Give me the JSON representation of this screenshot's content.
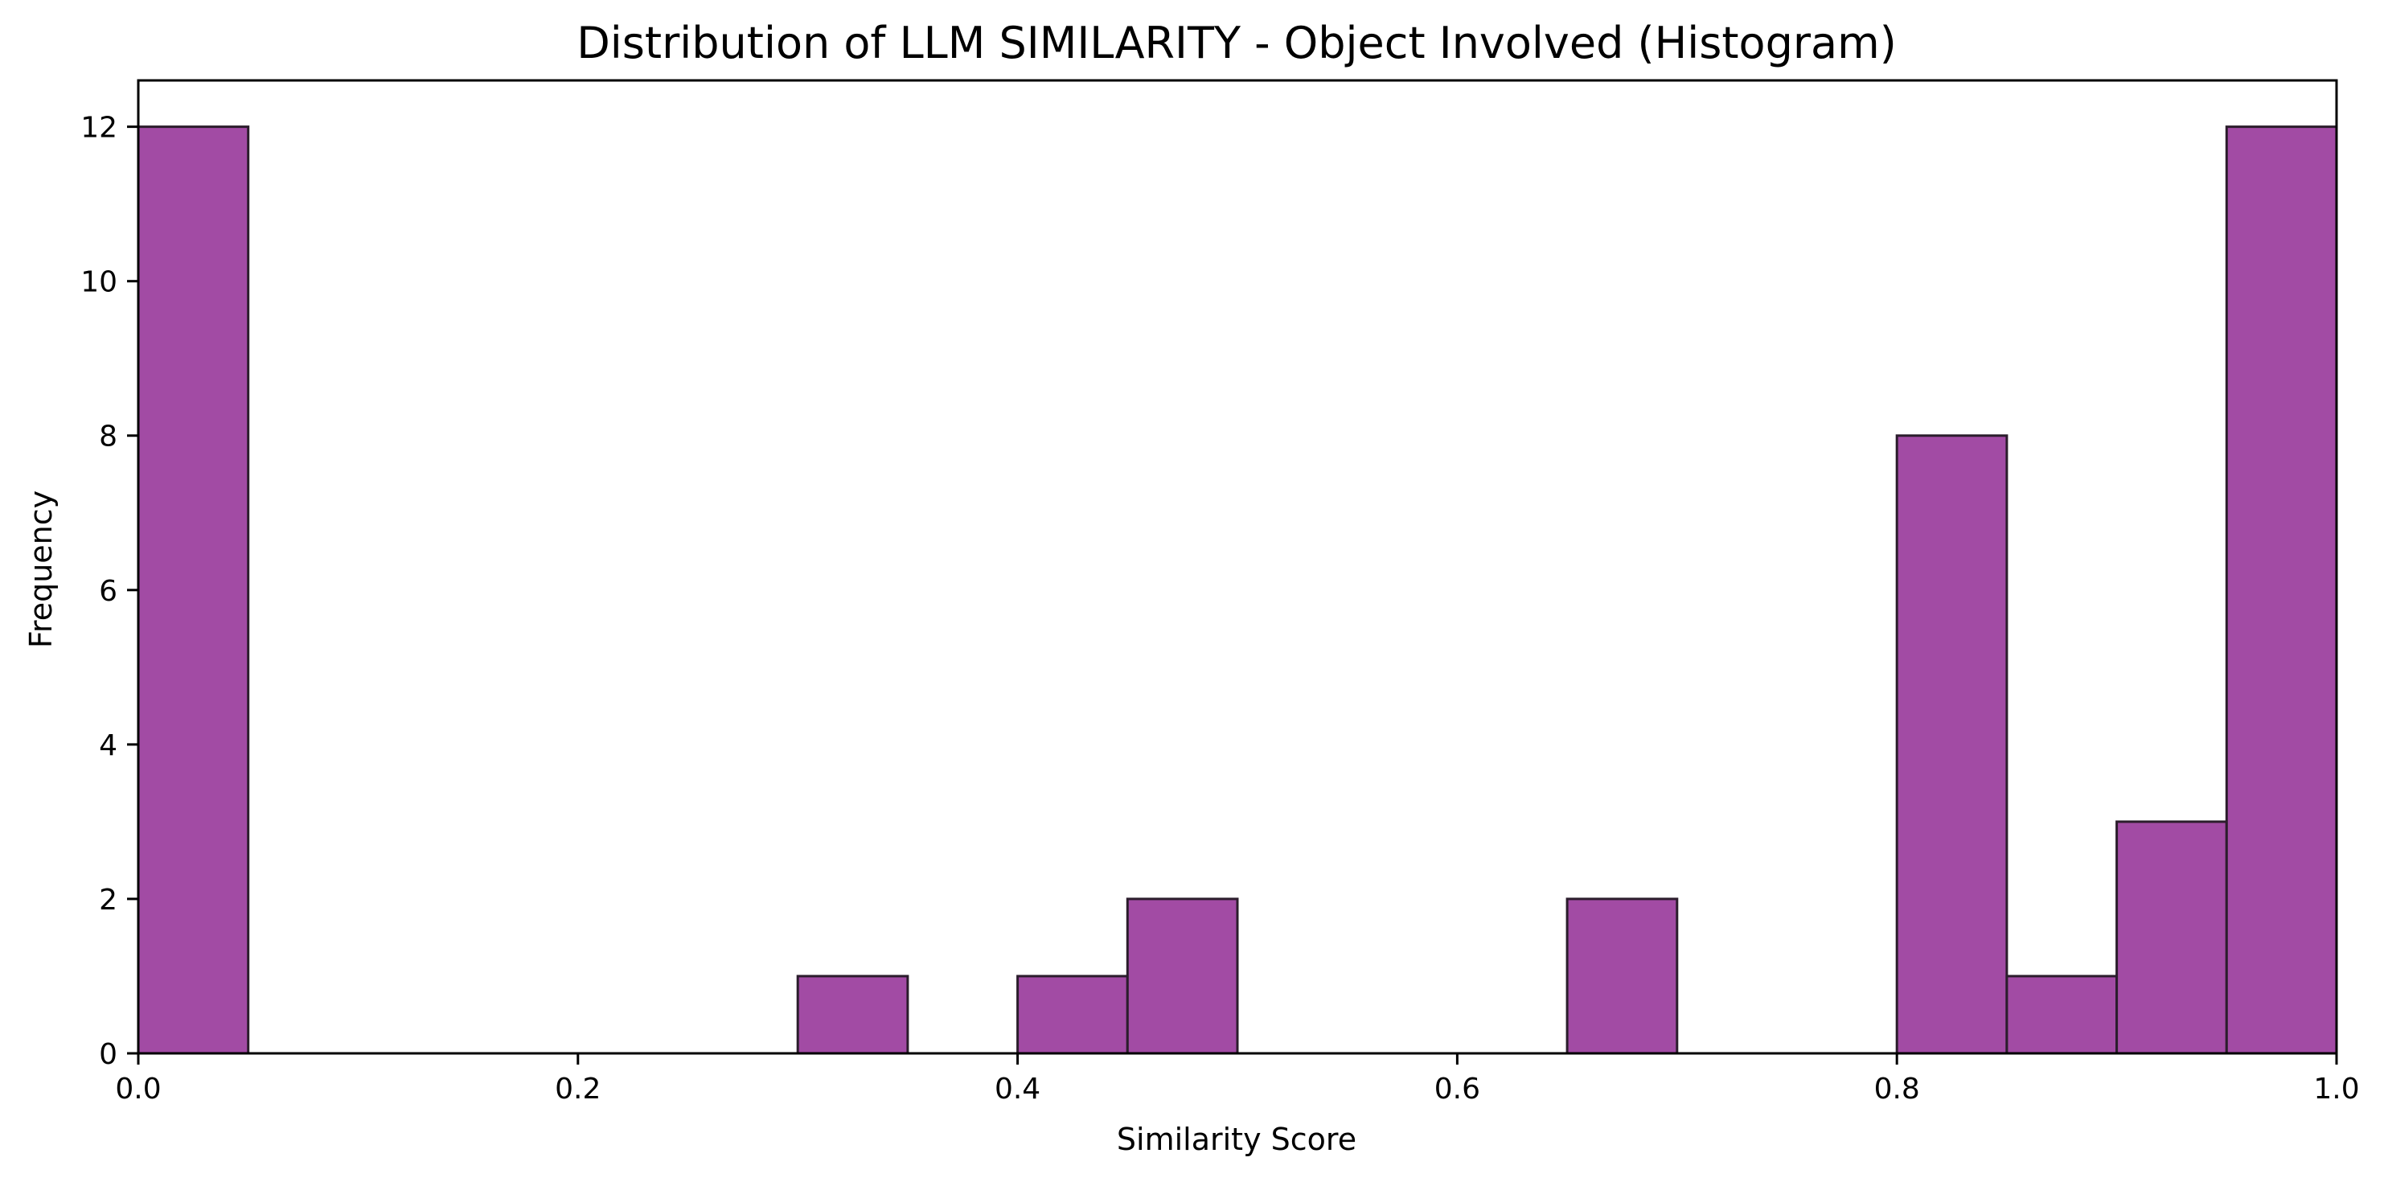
{
  "chart_data": {
    "type": "bar",
    "title": "Distribution of LLM SIMILARITY - Object Involved (Histogram)",
    "xlabel": "Similarity Score",
    "ylabel": "Frequency",
    "xlim": [
      0,
      1.0
    ],
    "ylim": [
      0,
      12.6
    ],
    "xticks": [
      0.0,
      0.2,
      0.4,
      0.6,
      0.8,
      1.0
    ],
    "xtick_labels": [
      "0.0",
      "0.2",
      "0.4",
      "0.6",
      "0.8",
      "1.0"
    ],
    "yticks": [
      0,
      2,
      4,
      6,
      8,
      10,
      12
    ],
    "ytick_labels": [
      "0",
      "2",
      "4",
      "6",
      "8",
      "10",
      "12"
    ],
    "bin_width": 0.05,
    "bins": [
      {
        "start": 0.0,
        "end": 0.05,
        "count": 12
      },
      {
        "start": 0.3,
        "end": 0.35,
        "count": 1
      },
      {
        "start": 0.4,
        "end": 0.45,
        "count": 1
      },
      {
        "start": 0.45,
        "end": 0.5,
        "count": 2
      },
      {
        "start": 0.65,
        "end": 0.7,
        "count": 2
      },
      {
        "start": 0.8,
        "end": 0.85,
        "count": 8
      },
      {
        "start": 0.85,
        "end": 0.9,
        "count": 1
      },
      {
        "start": 0.9,
        "end": 0.95,
        "count": 3
      },
      {
        "start": 0.95,
        "end": 1.0,
        "count": 12
      }
    ],
    "grid": false,
    "colors": {
      "bar_fill": "#a24ba4",
      "bar_edge": "#2b1d2c",
      "axis": "#000000"
    }
  }
}
